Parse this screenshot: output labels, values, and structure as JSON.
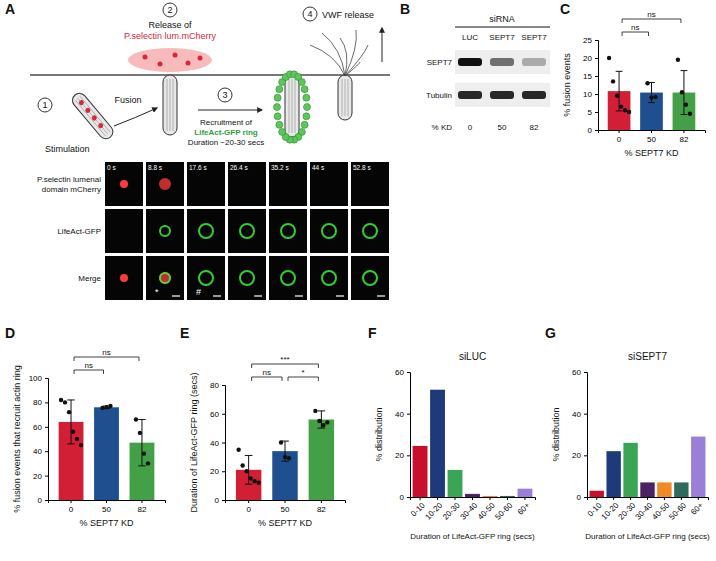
{
  "schematic": {
    "panel": "A",
    "steps": [
      "1",
      "2",
      "3",
      "4"
    ],
    "stimulation": "Stimulation",
    "fusion": "Fusion",
    "release": [
      "Release of",
      "P.selectin lum.mCherry"
    ],
    "recruitment": [
      "Recruitment of",
      "LifeAct-GFP ring",
      "Duration ~20-30 secs"
    ],
    "vwf": "VWF release"
  },
  "microscopy": {
    "rows": [
      "P.selectin lumenal domain mCherry",
      "LifeAct-GFP",
      "Merge"
    ],
    "times": [
      "0 s",
      "8.8 s",
      "17.6 s",
      "26.4 s",
      "35.2 s",
      "44 s",
      "52.8 s"
    ],
    "merge_marks": [
      null,
      "*",
      "#",
      null,
      null,
      null,
      null
    ]
  },
  "blot": {
    "panel": "B",
    "header": "siRNA",
    "lanes": [
      "LUC",
      "SEPT7",
      "SEPT7"
    ],
    "proteins": [
      "SEPT7",
      "Tubulin"
    ],
    "kd_label": "% KD",
    "kd": [
      0,
      50,
      82
    ]
  },
  "chart_data": [
    {
      "panel": "C",
      "type": "bar",
      "categories": [
        "0",
        "50",
        "82"
      ],
      "values": [
        10.8,
        10.4,
        10.4
      ],
      "errors": [
        5.5,
        2.8,
        6.1
      ],
      "points": [
        [
          20,
          13.5,
          9.5,
          6.5,
          5.5,
          5
        ],
        [
          13,
          9,
          9.2
        ],
        [
          19.5,
          10.5,
          7,
          4.5
        ]
      ],
      "colors": [
        "#d21f35",
        "#1f4f8f",
        "#43a047"
      ],
      "xlabel": "% SEPT7 KD",
      "ylabel": "% fusion events",
      "ylim": [
        0,
        25
      ],
      "yticks": [
        0,
        5,
        10,
        15,
        20,
        25
      ],
      "comparisons": [
        {
          "from": 0,
          "to": 1,
          "label": "ns"
        },
        {
          "from": 0,
          "to": 2,
          "label": "ns"
        }
      ]
    },
    {
      "panel": "D",
      "type": "bar",
      "categories": [
        "0",
        "50",
        "82"
      ],
      "values": [
        64,
        76,
        47
      ],
      "errors": [
        18,
        1,
        19
      ],
      "points": [
        [
          82,
          80,
          72,
          56,
          50,
          45
        ],
        [
          75.5,
          76,
          77
        ],
        [
          66,
          55,
          38,
          30
        ]
      ],
      "colors": [
        "#d21f35",
        "#1f4f8f",
        "#43a047"
      ],
      "xlabel": "% SEPT7 KD",
      "ylabel": "% fusion events that recruit actin ring",
      "ylim": [
        0,
        100
      ],
      "yticks": [
        0,
        20,
        40,
        60,
        80,
        100
      ],
      "comparisons": [
        {
          "from": 0,
          "to": 1,
          "label": "ns"
        },
        {
          "from": 0,
          "to": 2,
          "label": "ns"
        }
      ]
    },
    {
      "panel": "E",
      "type": "bar",
      "categories": [
        "0",
        "50",
        "82"
      ],
      "values": [
        21,
        34,
        56
      ],
      "errors": [
        10,
        7,
        6
      ],
      "points": [
        [
          35,
          24,
          20,
          15,
          13,
          12
        ],
        [
          40,
          30,
          29
        ],
        [
          62,
          55,
          52,
          54
        ]
      ],
      "colors": [
        "#d21f35",
        "#1f4f8f",
        "#43a047"
      ],
      "xlabel": "% SEPT7 KD",
      "ylabel": "Duration of LifeAct-GFP ring (secs)",
      "ylim": [
        0,
        80
      ],
      "yticks": [
        0,
        20,
        40,
        60,
        80
      ],
      "comparisons": [
        {
          "from": 0,
          "to": 1,
          "label": "ns"
        },
        {
          "from": 0,
          "to": 2,
          "label": "***"
        },
        {
          "from": 1,
          "to": 2,
          "label": "*"
        }
      ]
    },
    {
      "panel": "F",
      "type": "bar",
      "title": "siLUC",
      "categories": [
        "0-10",
        "10-20",
        "20-30",
        "30-40",
        "40-50",
        "50-60",
        "60+"
      ],
      "values": [
        24.5,
        51.5,
        13,
        1.5,
        0.5,
        0.5,
        4
      ],
      "colors": [
        "#c8102e",
        "#1f3a7a",
        "#3aa655",
        "#4b2363",
        "#f08a24",
        "#2f6b5a",
        "#9a7fd6"
      ],
      "xlabel": "Duration of LifeAct-GFP ring (secs)",
      "ylabel": "% distribution",
      "ylim": [
        0,
        60
      ],
      "yticks": [
        0,
        20,
        40,
        60
      ]
    },
    {
      "panel": "G",
      "type": "bar",
      "title": "siSEPT7",
      "categories": [
        "0-10",
        "10-20",
        "20-30",
        "30-40",
        "40-50",
        "50-60",
        "60+"
      ],
      "values": [
        3,
        22,
        26,
        7,
        7,
        7,
        29
      ],
      "colors": [
        "#c8102e",
        "#1f3a7a",
        "#3aa655",
        "#4b2363",
        "#f08a24",
        "#2f6b5a",
        "#9a7fd6"
      ],
      "xlabel": "Duration of LifeAct-GFP ring (secs)",
      "ylabel": "% distribution",
      "ylim": [
        0,
        60
      ],
      "yticks": [
        0,
        20,
        40,
        60
      ]
    }
  ]
}
